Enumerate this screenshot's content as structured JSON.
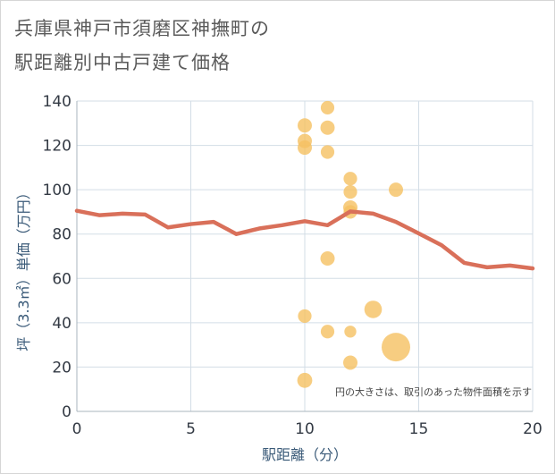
{
  "title_line1": "兵庫県神戸市須磨区神撫町の",
  "title_line2": "駅距離別中古戸建て価格",
  "chart_data": {
    "type": "scatter",
    "xlabel": "駅距離（分）",
    "ylabel": "坪（3.3㎡）単価（万円）",
    "xlim": [
      0,
      20
    ],
    "ylim": [
      0,
      140
    ],
    "xticks": [
      0,
      5,
      10,
      15,
      20
    ],
    "yticks": [
      0,
      20,
      40,
      60,
      80,
      100,
      120,
      140
    ],
    "grid": true,
    "annotation": "円の大きさは、取引のあった物件面積を示す",
    "colors": {
      "bubble": "#f5c062",
      "line": "#d9705a",
      "grid": "#d3dde6"
    },
    "line": {
      "x": [
        0,
        1,
        2,
        3,
        4,
        5,
        6,
        7,
        8,
        9,
        10,
        11,
        12,
        13,
        14,
        15,
        16,
        17,
        18,
        19,
        20
      ],
      "y": [
        90.5,
        88.5,
        89.2,
        88.8,
        83,
        84.5,
        85.5,
        80,
        82.5,
        84,
        85.8,
        84,
        90.2,
        89.2,
        85.5,
        80.3,
        75,
        67,
        65,
        65.8,
        64.5
      ]
    },
    "points": [
      {
        "x": 10,
        "y": 129,
        "size": 1
      },
      {
        "x": 10,
        "y": 122,
        "size": 1
      },
      {
        "x": 10,
        "y": 119,
        "size": 1
      },
      {
        "x": 10,
        "y": 43,
        "size": 0.9
      },
      {
        "x": 10,
        "y": 14,
        "size": 1.1
      },
      {
        "x": 11,
        "y": 137,
        "size": 0.9
      },
      {
        "x": 11,
        "y": 128,
        "size": 1
      },
      {
        "x": 11,
        "y": 117,
        "size": 0.9
      },
      {
        "x": 11,
        "y": 69,
        "size": 1
      },
      {
        "x": 11,
        "y": 36,
        "size": 0.9
      },
      {
        "x": 12,
        "y": 105,
        "size": 0.9
      },
      {
        "x": 12,
        "y": 99,
        "size": 0.9
      },
      {
        "x": 12,
        "y": 92,
        "size": 1
      },
      {
        "x": 12,
        "y": 90,
        "size": 0.9
      },
      {
        "x": 12,
        "y": 36,
        "size": 0.7
      },
      {
        "x": 12,
        "y": 22,
        "size": 1
      },
      {
        "x": 13,
        "y": 46,
        "size": 1.5
      },
      {
        "x": 14,
        "y": 100,
        "size": 1
      },
      {
        "x": 14,
        "y": 29,
        "size": 4
      }
    ]
  }
}
